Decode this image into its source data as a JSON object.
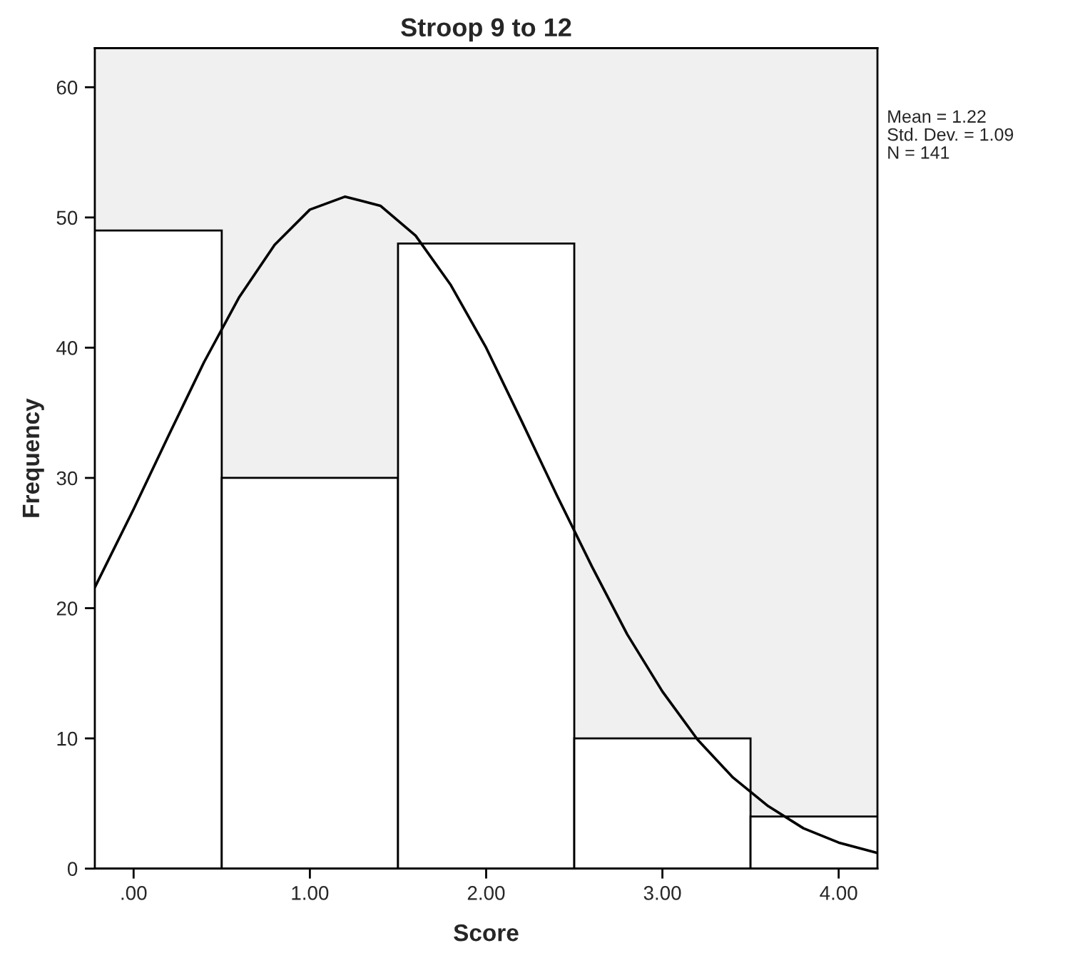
{
  "chart_data": {
    "type": "histogram",
    "title": "Stroop 9 to 12",
    "xlabel": "Score",
    "ylabel": "Frequency",
    "bins": [
      -0.5,
      0.5,
      1.5,
      2.5,
      3.5,
      4.5
    ],
    "values": [
      49,
      30,
      48,
      10,
      4
    ],
    "color": "#ffffff",
    "series": [
      {
        "type": "line",
        "color": "#000000",
        "x": [
          -0.22,
          0,
          0.2,
          0.4,
          0.6,
          0.8,
          1.0,
          1.2,
          1.4,
          1.6,
          1.8,
          2.0,
          2.2,
          2.4,
          2.6,
          2.8,
          3.0,
          3.2,
          3.4,
          3.6,
          3.8,
          4.0,
          4.22
        ],
        "values": [
          21.6,
          27.6,
          33.3,
          38.9,
          43.9,
          47.9,
          50.6,
          51.6,
          50.9,
          48.6,
          44.8,
          40.0,
          34.4,
          28.7,
          23.2,
          18.0,
          13.6,
          9.9,
          7.0,
          4.8,
          3.1,
          2.0,
          1.2
        ]
      }
    ],
    "xlim": [
      -0.22,
      4.22
    ],
    "xticks": [
      {
        "value": 0,
        "label": ".00"
      },
      {
        "value": 1,
        "label": "1.00"
      },
      {
        "value": 2,
        "label": "2.00"
      },
      {
        "value": 3,
        "label": "3.00"
      },
      {
        "value": 4,
        "label": "4.00"
      }
    ],
    "ylim": [
      0,
      63
    ],
    "yticks": [
      0,
      10,
      20,
      30,
      40,
      50,
      60
    ],
    "annotations": [
      "Mean = 1.22",
      "Std. Dev. = 1.09",
      "N = 141"
    ],
    "grid": false,
    "legend": false
  }
}
